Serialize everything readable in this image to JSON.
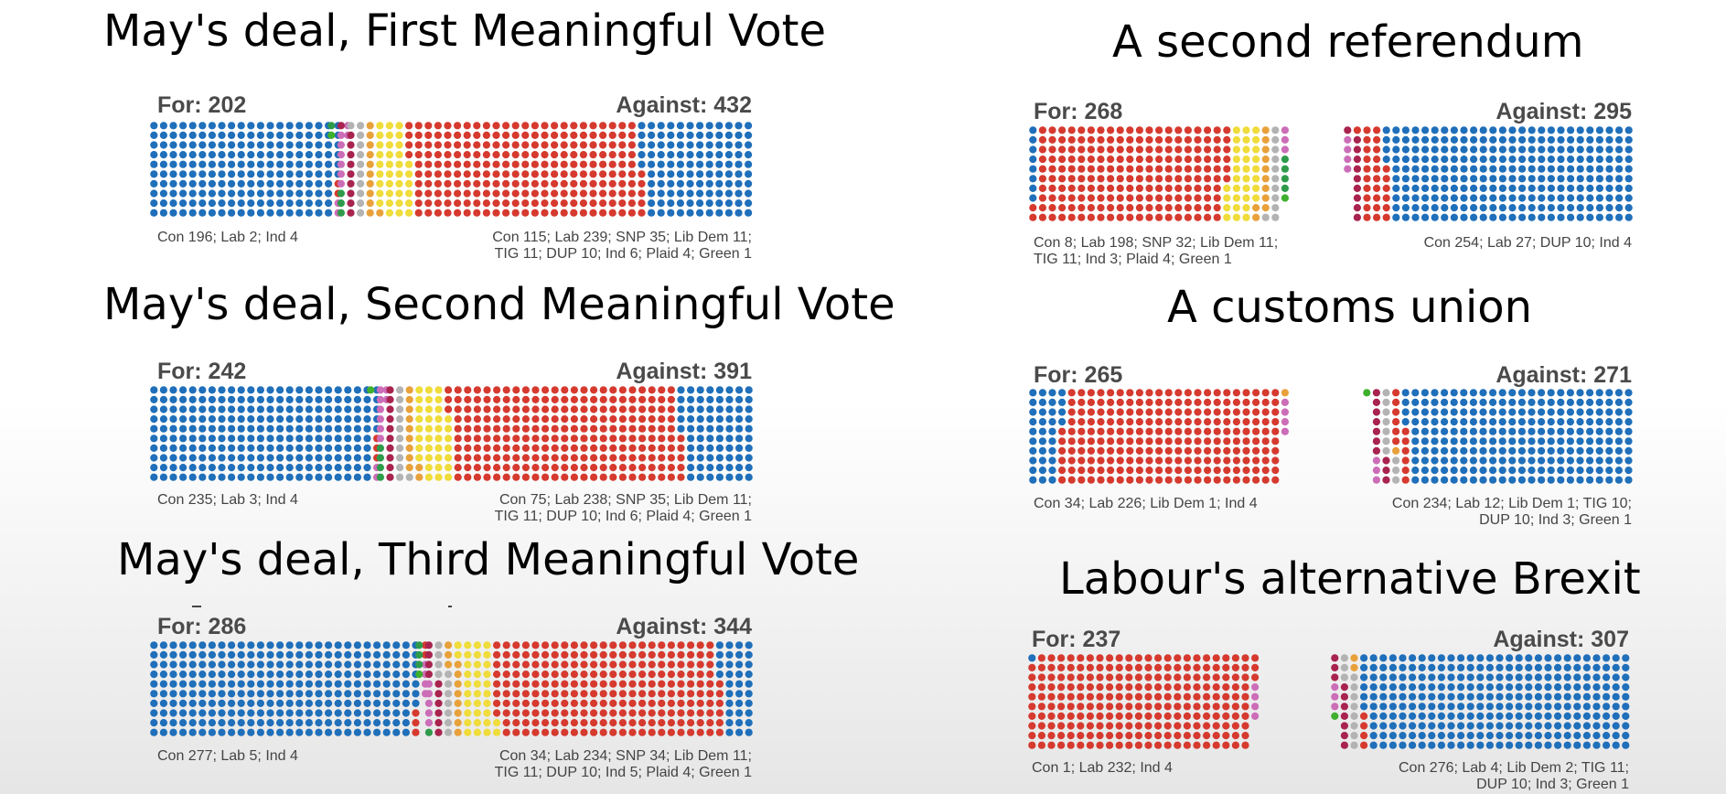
{
  "colors": {
    "Con": "#1f6fba",
    "Lab": "#d63a2f",
    "SNP": "#f0dc3a",
    "LibDem": "#e8a13a",
    "TIG": "#b3b3b3",
    "DUP": "#a8234e",
    "Ind": "#cc6db8",
    "Plaid": "#2e9b4a",
    "Green": "#3fb02d"
  },
  "chart_data": [
    {
      "type": "dot-matrix",
      "title": "May's deal, First Meaningful Vote",
      "for": {
        "label": "For: 202",
        "total": 202,
        "parties": [
          {
            "party": "Con",
            "count": 196
          },
          {
            "party": "Lab",
            "count": 2
          },
          {
            "party": "Ind",
            "count": 4
          }
        ],
        "breakdown": [
          "Con 196; Lab 2; Ind 4"
        ]
      },
      "against": {
        "label": "Against: 432",
        "total": 432,
        "parties": [
          {
            "party": "Con",
            "count": 115
          },
          {
            "party": "Lab",
            "count": 239
          },
          {
            "party": "SNP",
            "count": 35
          },
          {
            "party": "LibDem",
            "count": 11
          },
          {
            "party": "TIG",
            "count": 11
          },
          {
            "party": "DUP",
            "count": 10
          },
          {
            "party": "Ind",
            "count": 6
          },
          {
            "party": "Plaid",
            "count": 4
          },
          {
            "party": "Green",
            "count": 1
          }
        ],
        "breakdown": [
          "Con 115; Lab 239; SNP 35; Lib Dem 11;",
          "TIG 11; DUP 10; Ind 6; Plaid 4; Green 1"
        ]
      }
    },
    {
      "type": "dot-matrix",
      "title": "May's deal, Second Meaningful Vote",
      "for": {
        "label": "For: 242",
        "total": 242,
        "parties": [
          {
            "party": "Con",
            "count": 235
          },
          {
            "party": "Lab",
            "count": 3
          },
          {
            "party": "Ind",
            "count": 4
          }
        ],
        "breakdown": [
          "Con 235; Lab 3; Ind 4"
        ]
      },
      "against": {
        "label": "Against: 391",
        "total": 391,
        "parties": [
          {
            "party": "Con",
            "count": 75
          },
          {
            "party": "Lab",
            "count": 238
          },
          {
            "party": "SNP",
            "count": 35
          },
          {
            "party": "LibDem",
            "count": 11
          },
          {
            "party": "TIG",
            "count": 11
          },
          {
            "party": "DUP",
            "count": 10
          },
          {
            "party": "Ind",
            "count": 6
          },
          {
            "party": "Plaid",
            "count": 4
          },
          {
            "party": "Green",
            "count": 1
          }
        ],
        "breakdown": [
          "Con 75; Lab 238; SNP 35; Lib Dem 11;",
          "TIG 11; DUP 10; Ind 6; Plaid 4; Green 1"
        ]
      }
    },
    {
      "type": "dot-matrix",
      "title": "May's deal, Third Meaningful Vote",
      "for": {
        "label": "For: 286",
        "total": 286,
        "parties": [
          {
            "party": "Con",
            "count": 277
          },
          {
            "party": "Lab",
            "count": 5
          },
          {
            "party": "Ind",
            "count": 4
          }
        ],
        "breakdown": [
          "Con 277; Lab 5; Ind 4"
        ]
      },
      "against": {
        "label": "Against: 344",
        "total": 344,
        "parties": [
          {
            "party": "Con",
            "count": 34
          },
          {
            "party": "Lab",
            "count": 234
          },
          {
            "party": "SNP",
            "count": 34
          },
          {
            "party": "LibDem",
            "count": 11
          },
          {
            "party": "TIG",
            "count": 11
          },
          {
            "party": "DUP",
            "count": 10
          },
          {
            "party": "Ind",
            "count": 5
          },
          {
            "party": "Plaid",
            "count": 4
          },
          {
            "party": "Green",
            "count": 1
          }
        ],
        "breakdown": [
          "Con 34; Lab 234; SNP 34; Lib Dem 11;",
          "TIG 11; DUP 10; Ind 5; Plaid 4; Green 1"
        ]
      }
    },
    {
      "type": "dot-matrix",
      "title": "A second referendum",
      "for": {
        "label": "For: 268",
        "total": 268,
        "parties": [
          {
            "party": "Con",
            "count": 8
          },
          {
            "party": "Lab",
            "count": 198
          },
          {
            "party": "SNP",
            "count": 32
          },
          {
            "party": "LibDem",
            "count": 11
          },
          {
            "party": "TIG",
            "count": 11
          },
          {
            "party": "Ind",
            "count": 3
          },
          {
            "party": "Plaid",
            "count": 4
          },
          {
            "party": "Green",
            "count": 1
          }
        ],
        "breakdown": [
          "Con 8; Lab 198; SNP 32; Lib Dem 11;",
          "TIG 11; Ind 3; Plaid 4; Green 1"
        ]
      },
      "against": {
        "label": "Against: 295",
        "total": 295,
        "parties": [
          {
            "party": "Con",
            "count": 254
          },
          {
            "party": "Lab",
            "count": 27
          },
          {
            "party": "DUP",
            "count": 10
          },
          {
            "party": "Ind",
            "count": 4
          }
        ],
        "breakdown": [
          "Con 254; Lab 27; DUP 10; Ind 4"
        ]
      }
    },
    {
      "type": "dot-matrix",
      "title": "A customs union",
      "for": {
        "label": "For: 265",
        "total": 265,
        "parties": [
          {
            "party": "Con",
            "count": 34
          },
          {
            "party": "Lab",
            "count": 226
          },
          {
            "party": "LibDem",
            "count": 1
          },
          {
            "party": "Ind",
            "count": 4
          }
        ],
        "breakdown": [
          "Con 34; Lab 226; Lib Dem 1; Ind 4"
        ]
      },
      "against": {
        "label": "Against: 271",
        "total": 271,
        "parties": [
          {
            "party": "Con",
            "count": 234
          },
          {
            "party": "Lab",
            "count": 12
          },
          {
            "party": "LibDem",
            "count": 1
          },
          {
            "party": "TIG",
            "count": 10
          },
          {
            "party": "DUP",
            "count": 10
          },
          {
            "party": "Ind",
            "count": 3
          },
          {
            "party": "Green",
            "count": 1
          }
        ],
        "breakdown": [
          "Con 234; Lab 12; Lib Dem 1; TIG 10;",
          "DUP 10; Ind 3; Green 1"
        ]
      }
    },
    {
      "type": "dot-matrix",
      "title": "Labour's alternative Brexit",
      "for": {
        "label": "For: 237",
        "total": 237,
        "parties": [
          {
            "party": "Con",
            "count": 1
          },
          {
            "party": "Lab",
            "count": 232
          },
          {
            "party": "Ind",
            "count": 4
          }
        ],
        "breakdown": [
          "Con 1; Lab 232; Ind 4"
        ]
      },
      "against": {
        "label": "Against: 307",
        "total": 307,
        "parties": [
          {
            "party": "Con",
            "count": 276
          },
          {
            "party": "Lab",
            "count": 4
          },
          {
            "party": "LibDem",
            "count": 2
          },
          {
            "party": "TIG",
            "count": 11
          },
          {
            "party": "DUP",
            "count": 10
          },
          {
            "party": "Ind",
            "count": 3
          },
          {
            "party": "Green",
            "count": 1
          }
        ],
        "breakdown": [
          "Con 276; Lab 4; Lib Dem 2; TIG 11;",
          "DUP 10; Ind 3; Green 1"
        ]
      }
    }
  ]
}
